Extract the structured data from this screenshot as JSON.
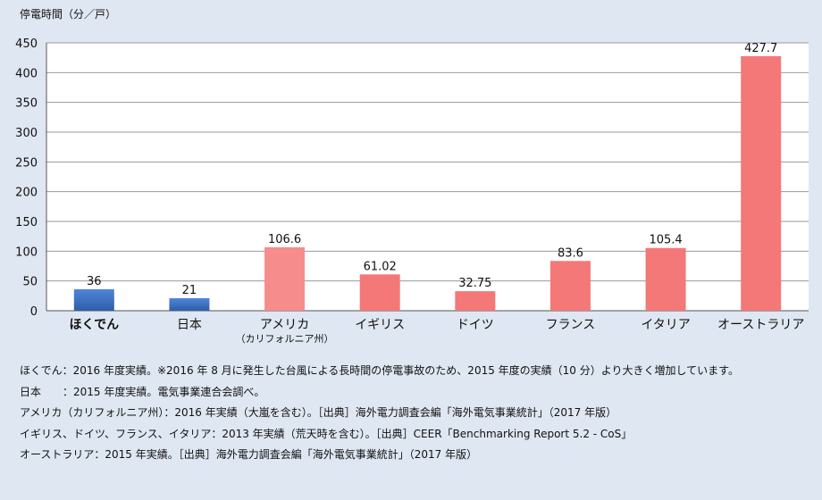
{
  "chart_data": {
    "type": "bar",
    "ylabel": "停電時間（分／戸）",
    "ylim": [
      0,
      450
    ],
    "yticks": [
      0,
      50,
      100,
      150,
      200,
      250,
      300,
      350,
      400,
      450
    ],
    "grid": true,
    "categories": [
      {
        "label": "ほくでん",
        "sub": "",
        "bold": true
      },
      {
        "label": "日本",
        "sub": "",
        "bold": false
      },
      {
        "label": "アメリカ",
        "sub": "（カリフォルニア州）",
        "bold": false
      },
      {
        "label": "イギリス",
        "sub": "",
        "bold": false
      },
      {
        "label": "ドイツ",
        "sub": "",
        "bold": false
      },
      {
        "label": "フランス",
        "sub": "",
        "bold": false
      },
      {
        "label": "イタリア",
        "sub": "",
        "bold": false
      },
      {
        "label": "オーストラリア",
        "sub": "",
        "bold": false
      }
    ],
    "values": [
      36,
      21,
      106.6,
      61.02,
      32.75,
      83.6,
      105.4,
      427.7
    ],
    "value_labels": [
      "36",
      "21",
      "106.6",
      "61.02",
      "32.75",
      "83.6",
      "105.4",
      "427.7"
    ],
    "colors": [
      "#3a6fc4",
      "#3a6fc4",
      "#f78c8c",
      "#f47878",
      "#f47878",
      "#f47878",
      "#f47878",
      "#f47878"
    ]
  },
  "notes": [
    "ほくでん：2016 年度実績。※2016 年 8 月に発生した台風による長時間の停電事故のため、2015 年度の実績（10 分）より大きく増加しています。",
    "日本　　：2015 年度実績。電気事業連合会調べ。",
    "アメリカ（カリフォルニア州）：2016 年実績（大嵐を含む）。［出典］海外電力調査会編「海外電気事業統計」（2017 年版）",
    "イギリス、ドイツ、フランス、イタリア：2013 年実績（荒天時を含む）。［出典］CEER「Benchmarking Report 5.2 - CoS」",
    "オーストラリア：2015 年実績。［出典］海外電力調査会編「海外電気事業統計」（2017 年版）"
  ]
}
